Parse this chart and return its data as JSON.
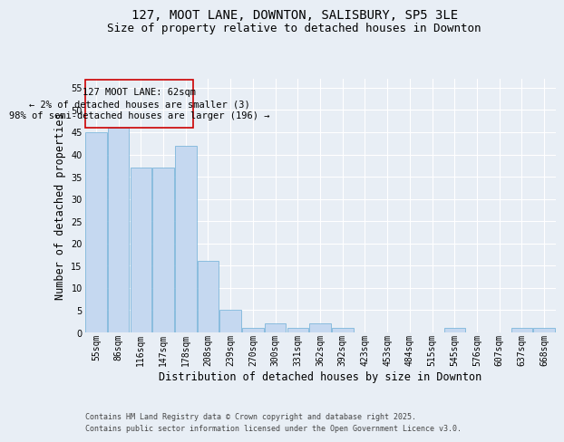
{
  "title1": "127, MOOT LANE, DOWNTON, SALISBURY, SP5 3LE",
  "title2": "Size of property relative to detached houses in Downton",
  "xlabel": "Distribution of detached houses by size in Downton",
  "ylabel": "Number of detached properties",
  "categories": [
    "55sqm",
    "86sqm",
    "116sqm",
    "147sqm",
    "178sqm",
    "208sqm",
    "239sqm",
    "270sqm",
    "300sqm",
    "331sqm",
    "362sqm",
    "392sqm",
    "423sqm",
    "453sqm",
    "484sqm",
    "515sqm",
    "545sqm",
    "576sqm",
    "607sqm",
    "637sqm",
    "668sqm"
  ],
  "values": [
    45,
    46,
    37,
    37,
    42,
    16,
    5,
    1,
    2,
    1,
    2,
    1,
    0,
    0,
    0,
    0,
    1,
    0,
    0,
    1,
    1
  ],
  "bar_color": "#c5d8f0",
  "bar_edge_color": "#6baed6",
  "annotation_box_color": "#cc0000",
  "annotation_line1": "127 MOOT LANE: 62sqm",
  "annotation_line2": "← 2% of detached houses are smaller (3)",
  "annotation_line3": "98% of semi-detached houses are larger (196) →",
  "footer1": "Contains HM Land Registry data © Crown copyright and database right 2025.",
  "footer2": "Contains public sector information licensed under the Open Government Licence v3.0.",
  "bg_color": "#e8eef5",
  "plot_bg_color": "#e8eef5",
  "ylim": [
    0,
    57
  ],
  "yticks": [
    0,
    5,
    10,
    15,
    20,
    25,
    30,
    35,
    40,
    45,
    50,
    55
  ],
  "grid_color": "#ffffff",
  "title_fontsize": 10,
  "subtitle_fontsize": 9,
  "tick_fontsize": 7,
  "label_fontsize": 8.5,
  "ann_fontsize": 7.5,
  "footer_fontsize": 6
}
